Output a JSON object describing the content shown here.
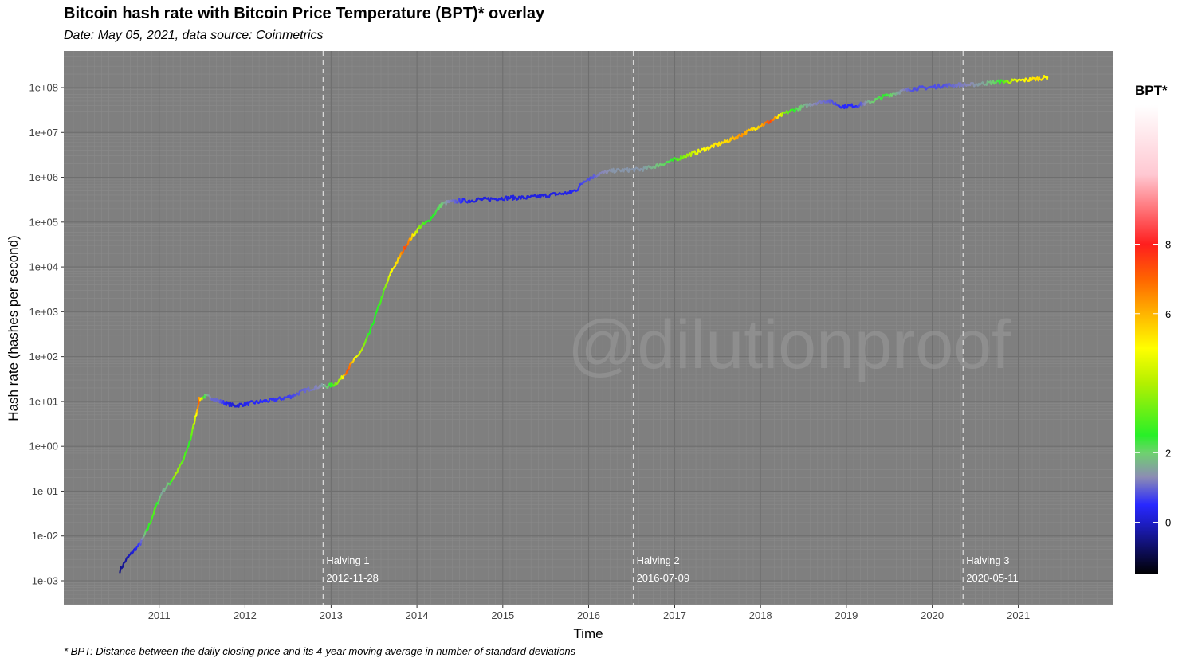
{
  "chart_data": {
    "type": "line",
    "title": "Bitcoin hash rate with Bitcoin Price Temperature (BPT)* overlay",
    "subtitle": "Date: May 05, 2021, data source: Coinmetrics",
    "caption": "* BPT: Distance between the daily closing price and its 4-year moving average in number of standard deviations",
    "xlabel": "Time",
    "ylabel": "Hash rate (hashes per second)",
    "y_scale": "log10",
    "ylim": [
      "1e-03",
      "1e+08"
    ],
    "xlim": [
      "2010-01-01",
      "2021-12-31"
    ],
    "grid": true,
    "watermark": "@dilutionproof",
    "x_ticks": [
      "2011",
      "2012",
      "2013",
      "2014",
      "2015",
      "2016",
      "2017",
      "2018",
      "2019",
      "2020",
      "2021"
    ],
    "y_ticks": [
      "1e-03",
      "1e-02",
      "1e-01",
      "1e+00",
      "1e+01",
      "1e+02",
      "1e+03",
      "1e+04",
      "1e+05",
      "1e+06",
      "1e+07",
      "1e+08"
    ],
    "halvings": [
      {
        "label": "Halving 1",
        "date": "2012-11-28"
      },
      {
        "label": "Halving 2",
        "date": "2016-07-09"
      },
      {
        "label": "Halving 3",
        "date": "2020-05-11"
      }
    ],
    "legend": {
      "title": "BPT*",
      "placement": "right",
      "ticks": [
        "0",
        "2",
        "6",
        "8"
      ],
      "range": [
        -1.5,
        12
      ],
      "colors": [
        {
          "value": -1.5,
          "color": "#000000"
        },
        {
          "value": 0,
          "color": "#1e1ec8"
        },
        {
          "value": 0.5,
          "color": "#2828ff"
        },
        {
          "value": 1.3,
          "color": "#8c8cb4"
        },
        {
          "value": 2,
          "color": "#6ed26e"
        },
        {
          "value": 2.5,
          "color": "#28f028"
        },
        {
          "value": 4,
          "color": "#b4f000"
        },
        {
          "value": 5,
          "color": "#ffff00"
        },
        {
          "value": 6,
          "color": "#ffb400"
        },
        {
          "value": 7,
          "color": "#ff6400"
        },
        {
          "value": 8,
          "color": "#ff1e1e"
        },
        {
          "value": 10,
          "color": "#ffc8d2"
        },
        {
          "value": 12,
          "color": "#ffffff"
        }
      ]
    },
    "panel_color": "#7f7f7f",
    "series": [
      {
        "x": [
          "2010-07-18",
          "2010-08-15",
          "2010-09-20",
          "2010-10-15",
          "2010-11-15",
          "2010-12-15",
          "2011-01-15",
          "2011-02-15",
          "2011-03-15",
          "2011-04-15",
          "2011-05-15",
          "2011-06-10",
          "2011-06-20",
          "2011-07-15",
          "2011-08-15",
          "2011-09-15",
          "2011-10-15",
          "2011-11-15",
          "2011-12-15",
          "2012-01-15",
          "2012-03-15",
          "2012-05-15",
          "2012-07-15",
          "2012-09-15",
          "2012-11-15",
          "2012-12-15",
          "2013-01-15",
          "2013-02-15",
          "2013-03-15",
          "2013-04-15",
          "2013-05-15",
          "2013-06-15",
          "2013-07-15",
          "2013-08-15",
          "2013-09-15",
          "2013-10-15",
          "2013-11-15",
          "2013-12-15",
          "2014-01-15",
          "2014-02-15",
          "2014-03-15",
          "2014-04-15",
          "2014-05-15",
          "2014-06-15",
          "2014-07-15",
          "2014-08-15",
          "2014-09-15",
          "2014-10-15",
          "2014-11-15",
          "2014-12-15",
          "2015-02-15",
          "2015-04-15",
          "2015-06-15",
          "2015-08-15",
          "2015-10-15",
          "2015-11-15",
          "2015-12-15",
          "2016-01-15",
          "2016-02-15",
          "2016-04-15",
          "2016-06-15",
          "2016-08-15",
          "2016-10-15",
          "2016-12-15",
          "2017-02-15",
          "2017-04-15",
          "2017-06-15",
          "2017-08-15",
          "2017-10-15",
          "2017-12-15",
          "2018-02-15",
          "2018-04-15",
          "2018-06-15",
          "2018-08-15",
          "2018-10-15",
          "2018-11-15",
          "2018-12-15",
          "2019-02-15",
          "2019-04-15",
          "2019-06-15",
          "2019-08-15",
          "2019-10-15",
          "2019-12-15",
          "2020-02-15",
          "2020-04-15",
          "2020-06-15",
          "2020-08-15",
          "2020-10-15",
          "2020-12-15",
          "2021-02-15",
          "2021-04-01",
          "2021-05-05"
        ],
        "y": [
          0.0017,
          0.003,
          0.005,
          0.007,
          0.015,
          0.04,
          0.1,
          0.15,
          0.25,
          0.5,
          1.5,
          6,
          11,
          13,
          12,
          10,
          9,
          8,
          8.5,
          9,
          10,
          11,
          13,
          18,
          22,
          22,
          24,
          33,
          55,
          90,
          150,
          350,
          1000,
          3000,
          8000,
          15000,
          30000,
          50000,
          80000,
          100000,
          150000,
          250000,
          280000,
          290000,
          300000,
          300000,
          320000,
          320000,
          330000,
          340000,
          350000,
          350000,
          380000,
          420000,
          450000,
          550000,
          850000,
          1000000,
          1200000,
          1400000,
          1450000,
          1500000,
          1800000,
          2300000,
          3000000,
          3800000,
          5000000,
          6500000,
          9000000,
          13000000,
          18000000,
          27000000,
          35000000,
          45000000,
          52000000,
          44000000,
          38000000,
          40000000,
          48000000,
          65000000,
          80000000,
          95000000,
          100000000,
          110000000,
          115000000,
          115000000,
          125000000,
          135000000,
          140000000,
          150000000,
          160000000,
          170000000
        ],
        "bpt": [
          -0.5,
          -0.3,
          0.2,
          0.8,
          2.5,
          3.0,
          1.5,
          2.0,
          4.0,
          3.0,
          2.5,
          5.0,
          7.0,
          2.2,
          1.0,
          1.0,
          0.4,
          0.1,
          0.2,
          0.4,
          0.5,
          0.6,
          0.7,
          1.0,
          1.3,
          1.8,
          3.0,
          4.2,
          7.5,
          5.0,
          4.0,
          2.5,
          2.5,
          3.0,
          5.0,
          5.5,
          7.5,
          5.5,
          3.5,
          2.5,
          2.5,
          2.0,
          1.3,
          1.0,
          0.5,
          0.3,
          0.2,
          0.2,
          0.2,
          0.3,
          0.2,
          0.2,
          0.2,
          0.2,
          0.3,
          0.5,
          0.8,
          0.8,
          1.2,
          1.4,
          1.4,
          1.4,
          1.8,
          2.3,
          3.5,
          4.8,
          5.3,
          5.5,
          6.5,
          5.2,
          7.5,
          3.5,
          2.0,
          1.3,
          1.0,
          0.8,
          0.5,
          0.5,
          1.8,
          2.5,
          1.5,
          0.8,
          0.8,
          0.8,
          1.1,
          1.3,
          1.6,
          2.3,
          4.5,
          5.2,
          5.5,
          5.0
        ]
      }
    ]
  }
}
